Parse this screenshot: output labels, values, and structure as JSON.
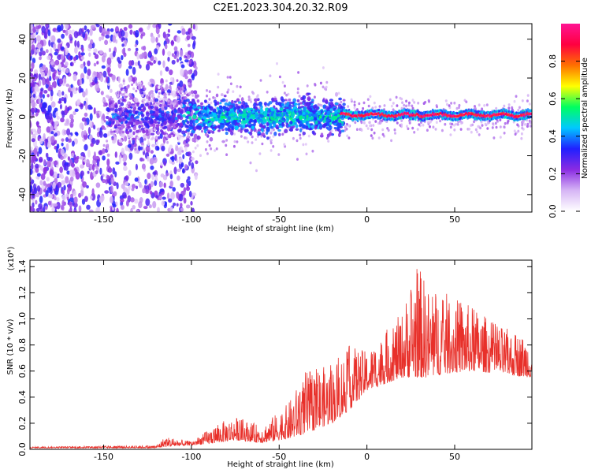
{
  "title": "C2E1.2023.304.20.32.R09",
  "chart_data": [
    {
      "type": "heatmap",
      "xlabel": "Height of straight line (km)",
      "ylabel": "Frequency (Hz)",
      "xlim": [
        -192,
        94
      ],
      "ylim": [
        -49,
        48
      ],
      "x_ticks": [
        -150,
        -100,
        -50,
        0,
        50
      ],
      "y_ticks": [
        -40,
        -20,
        0,
        20,
        40
      ],
      "colorbar": {
        "label": "Normalized spectral amplitude",
        "range": [
          0,
          1
        ],
        "ticks": [
          "0.0",
          "0.2",
          "0.4",
          "0.6",
          "0.8"
        ],
        "colors": [
          "#ffffff",
          "#d6b5f5",
          "#8a2be2",
          "#2020ff",
          "#00c8ff",
          "#00ff60",
          "#ffff00",
          "#ff7000",
          "#ff0040",
          "#ff1493"
        ]
      },
      "regions": [
        {
          "x_range": [
            -192,
            -105
          ],
          "freq_spread": [
            -49,
            48
          ],
          "amplitude": "0.1-0.3",
          "note": "scattered noise"
        },
        {
          "x_range": [
            -145,
            -25
          ],
          "freq_center": 0,
          "freq_spread": [
            -8,
            8
          ],
          "amplitude": "0.2-0.55"
        },
        {
          "x_range": [
            -15,
            94
          ],
          "freq_center": 0,
          "freq_spread": [
            -2,
            2
          ],
          "amplitude": "0.85-1.0"
        }
      ]
    },
    {
      "type": "line",
      "xlabel": "Height of straight line (km)",
      "ylabel": "SNR (10 * v/v)",
      "multiplier_label": "(x10⁴)",
      "xlim": [
        -192,
        94
      ],
      "ylim": [
        0,
        1.45
      ],
      "x_ticks": [
        -150,
        -100,
        -50,
        0,
        50
      ],
      "y_ticks": [
        "0.0",
        "0.2",
        "0.4",
        "0.6",
        "0.8",
        "1.0",
        "1.2",
        "1.4"
      ],
      "series": [
        {
          "color": "#e8302a",
          "envelope_x": [
            -192,
            -120,
            -115,
            -100,
            -85,
            -75,
            -60,
            -45,
            -35,
            -20,
            -10,
            0,
            10,
            20,
            28,
            35,
            45,
            60,
            75,
            94
          ],
          "envelope_y": [
            0.02,
            0.03,
            0.1,
            0.06,
            0.2,
            0.25,
            0.18,
            0.35,
            0.6,
            0.65,
            0.8,
            0.75,
            0.9,
            1.05,
            1.45,
            1.25,
            1.2,
            1.1,
            0.95,
            0.85
          ],
          "baseline_y": [
            0.01,
            0.01,
            0.02,
            0.03,
            0.05,
            0.07,
            0.05,
            0.08,
            0.12,
            0.2,
            0.3,
            0.45,
            0.5,
            0.55,
            0.55,
            0.55,
            0.58,
            0.6,
            0.58,
            0.55
          ]
        }
      ]
    }
  ]
}
